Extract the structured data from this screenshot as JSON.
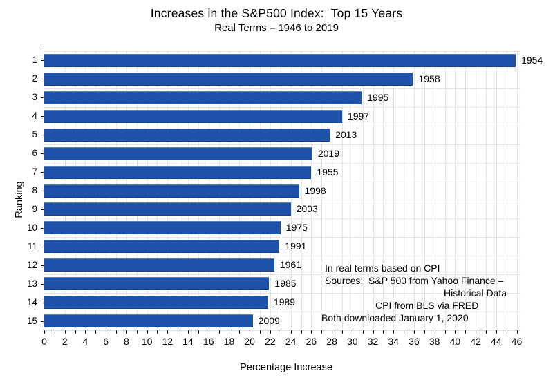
{
  "chart_data": {
    "type": "bar",
    "orientation": "horizontal",
    "title": "Increases in the S&P500 Index:  Top 15 Years",
    "subtitle": "Real Terms – 1946 to 2019",
    "xlabel": "Percentage Increase",
    "ylabel": "Ranking",
    "categories": [
      "1",
      "2",
      "3",
      "4",
      "5",
      "6",
      "7",
      "8",
      "9",
      "10",
      "11",
      "12",
      "13",
      "14",
      "15"
    ],
    "bar_year_labels": [
      "1954",
      "1958",
      "1995",
      "1997",
      "2013",
      "2019",
      "1955",
      "1998",
      "2003",
      "1975",
      "1991",
      "1961",
      "1985",
      "1989",
      "2009"
    ],
    "values": [
      45.9,
      35.9,
      30.9,
      29.0,
      27.8,
      26.1,
      26.0,
      24.8,
      24.0,
      23.0,
      22.9,
      22.4,
      21.9,
      21.8,
      20.3
    ],
    "xlim": [
      0,
      46
    ],
    "xtick_label_step": 2,
    "minor_tick_step": 1,
    "grid": true,
    "legend_position": "none",
    "colors": {
      "bar": "#1e52a8",
      "grid": "#e4e4e4",
      "axis": "#111111",
      "text": "#000000",
      "background": "#ffffff"
    },
    "annotation": {
      "lines": [
        "In real terms based on CPI",
        "Sources:  S&P 500 from Yahoo Finance –",
        "Historical Data",
        "CPI from BLS via FRED",
        "Both downloaded January 1, 2020"
      ]
    }
  }
}
